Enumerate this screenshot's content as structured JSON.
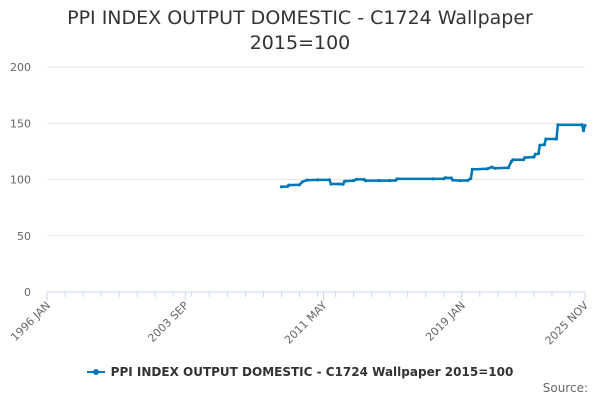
{
  "chart_data": {
    "type": "line",
    "title_lines": [
      "PPI INDEX OUTPUT DOMESTIC - C1724 Wallpaper",
      "2015=100"
    ],
    "xlabel": "",
    "ylabel": "",
    "ylim": [
      0,
      200
    ],
    "yticks": [
      0,
      50,
      100,
      150,
      200
    ],
    "x_range_start": "1996 JAN",
    "x_range_end": "2025 NOV",
    "xticks": [
      {
        "label": "1996 JAN",
        "date": "1996-01"
      },
      {
        "label": "2003 SEP",
        "date": "2003-09"
      },
      {
        "label": "2011 MAY",
        "date": "2011-05"
      },
      {
        "label": "2019 JAN",
        "date": "2019-01"
      },
      {
        "label": "2025 NOV",
        "date": "2025-11"
      }
    ],
    "grid": true,
    "legend_position": "bottom",
    "series": [
      {
        "name": "PPI INDEX OUTPUT DOMESTIC - C1724 Wallpaper 2015=100",
        "color": "#0077b6",
        "points": [
          [
            "2009-01",
            93.5
          ],
          [
            "2009-05",
            93.8
          ],
          [
            "2009-06",
            95.0
          ],
          [
            "2010-01",
            95.3
          ],
          [
            "2010-03",
            98.0
          ],
          [
            "2010-06",
            99.5
          ],
          [
            "2011-01",
            99.6
          ],
          [
            "2011-09",
            99.6
          ],
          [
            "2011-10",
            96.0
          ],
          [
            "2012-03",
            96.0
          ],
          [
            "2012-06",
            95.8
          ],
          [
            "2012-07",
            98.5
          ],
          [
            "2013-01",
            99.0
          ],
          [
            "2013-03",
            100.2
          ],
          [
            "2013-08",
            100.0
          ],
          [
            "2013-09",
            99.0
          ],
          [
            "2014-06",
            99.0
          ],
          [
            "2015-01",
            99.0
          ],
          [
            "2015-05",
            99.2
          ],
          [
            "2015-06",
            100.5
          ],
          [
            "2017-06",
            100.5
          ],
          [
            "2018-01",
            100.6
          ],
          [
            "2018-02",
            101.5
          ],
          [
            "2018-06",
            101.3
          ],
          [
            "2018-07",
            99.5
          ],
          [
            "2018-12",
            99.0
          ],
          [
            "2019-05",
            99.2
          ],
          [
            "2019-07",
            101.0
          ],
          [
            "2019-08",
            109.0
          ],
          [
            "2020-06",
            109.5
          ],
          [
            "2020-09",
            111.0
          ],
          [
            "2020-11",
            110.0
          ],
          [
            "2021-08",
            110.5
          ],
          [
            "2021-10",
            116.0
          ],
          [
            "2021-11",
            117.5
          ],
          [
            "2022-06",
            117.5
          ],
          [
            "2022-07",
            119.5
          ],
          [
            "2023-01",
            120.0
          ],
          [
            "2023-02",
            122.5
          ],
          [
            "2023-04",
            123.0
          ],
          [
            "2023-05",
            130.5
          ],
          [
            "2023-08",
            131.0
          ],
          [
            "2023-09",
            136.0
          ],
          [
            "2024-04",
            136.0
          ],
          [
            "2024-05",
            148.5
          ],
          [
            "2025-09",
            148.5
          ],
          [
            "2025-10",
            143.5
          ],
          [
            "2025-11",
            148.0
          ]
        ]
      }
    ]
  },
  "legend": {
    "label": "PPI INDEX OUTPUT DOMESTIC - C1724 Wallpaper 2015=100"
  },
  "source": {
    "label": "Source:"
  }
}
